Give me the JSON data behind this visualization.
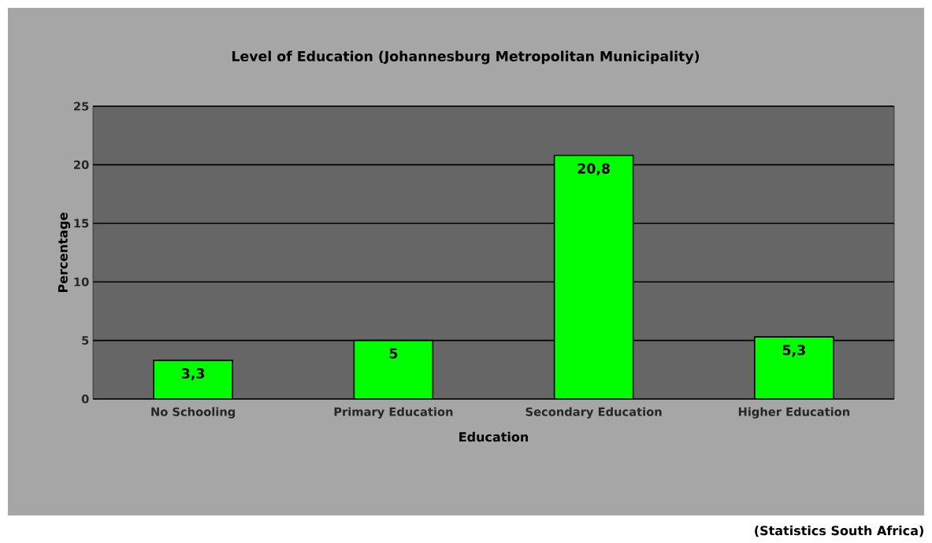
{
  "chart_data": {
    "type": "bar",
    "title": "Level of Education (Johannesburg Metropolitan Municipality)",
    "xlabel": "Education",
    "ylabel": "Percentage",
    "categories": [
      "No Schooling",
      "Primary Education",
      "Secondary Education",
      "Higher Education"
    ],
    "values": [
      3.3,
      5,
      20.8,
      5.3
    ],
    "color": "#00ff00",
    "value_labels": [
      "3,3",
      "5",
      "20,8",
      "5,3"
    ],
    "ylim": [
      0,
      25
    ],
    "yticks": [
      0,
      5,
      10,
      15,
      20,
      25
    ],
    "grid": "y",
    "annotations": [
      "(Statistics South Africa)"
    ]
  }
}
